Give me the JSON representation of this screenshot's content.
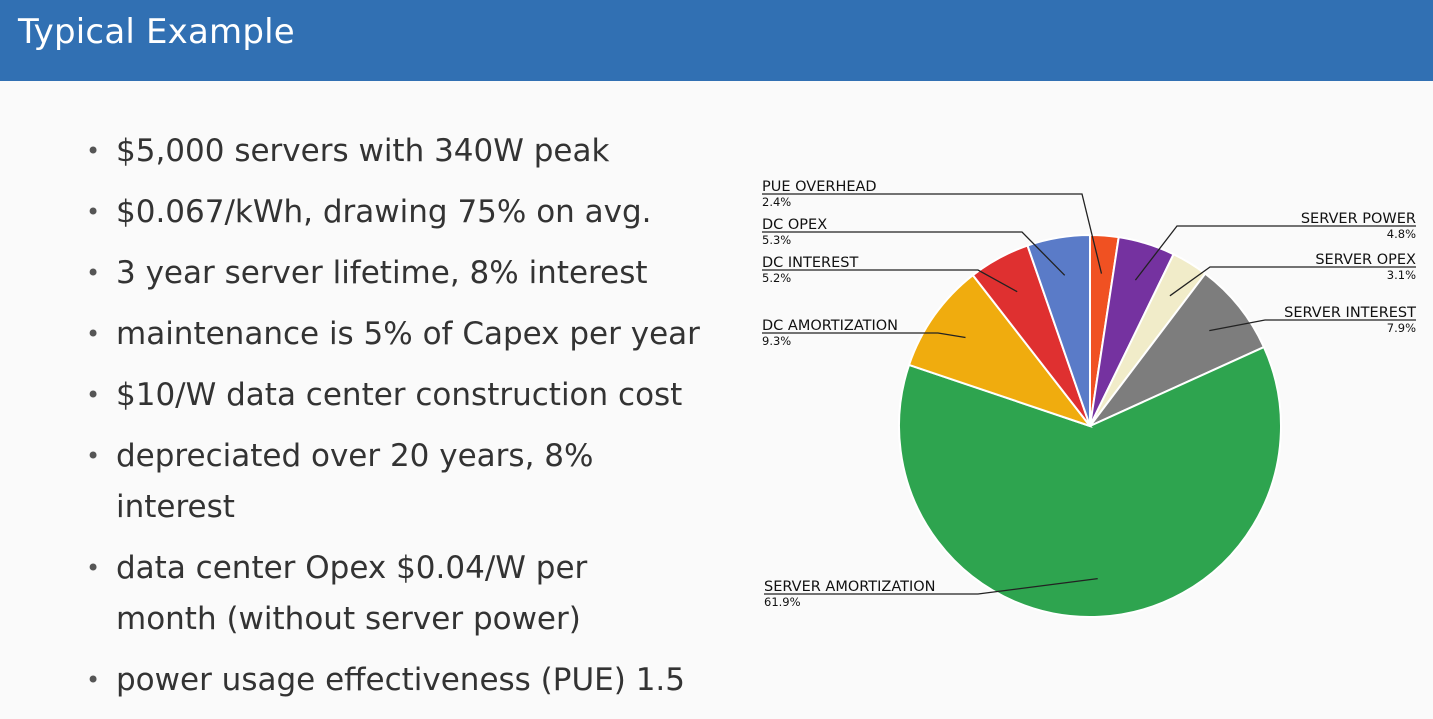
{
  "header": {
    "title": "Typical Example"
  },
  "bullets": [
    "$5,000 servers with 340W peak",
    "$0.067/kWh, drawing 75% on avg.",
    "3 year server lifetime, 8% interest",
    "maintenance is 5% of Capex per year",
    "$10/W data center construction cost",
    "depreciated over 20 years, 8% interest",
    "data center Opex $0.04/W per month (without server power)",
    "power usage effectiveness (PUE) 1.5"
  ],
  "chart_data": {
    "type": "pie",
    "slices": [
      {
        "label": "PUE OVERHEAD",
        "value": 2.4,
        "value_text": "2.4%",
        "color": "#f05122"
      },
      {
        "label": "SERVER POWER",
        "value": 4.8,
        "value_text": "4.8%",
        "color": "#7532a0"
      },
      {
        "label": "SERVER OPEX",
        "value": 3.1,
        "value_text": "3.1%",
        "color": "#f1ecc9"
      },
      {
        "label": "SERVER INTEREST",
        "value": 7.9,
        "value_text": "7.9%",
        "color": "#7d7d7d"
      },
      {
        "label": "SERVER AMORTIZATION",
        "value": 61.9,
        "value_text": "61.9%",
        "color": "#2ea44f"
      },
      {
        "label": "DC AMORTIZATION",
        "value": 9.3,
        "value_text": "9.3%",
        "color": "#f0ac0e"
      },
      {
        "label": "DC INTEREST",
        "value": 5.2,
        "value_text": "5.2%",
        "color": "#df3030"
      },
      {
        "label": "DC OPEX",
        "value": 5.3,
        "value_text": "5.3%",
        "color": "#5a7bc8"
      }
    ]
  }
}
